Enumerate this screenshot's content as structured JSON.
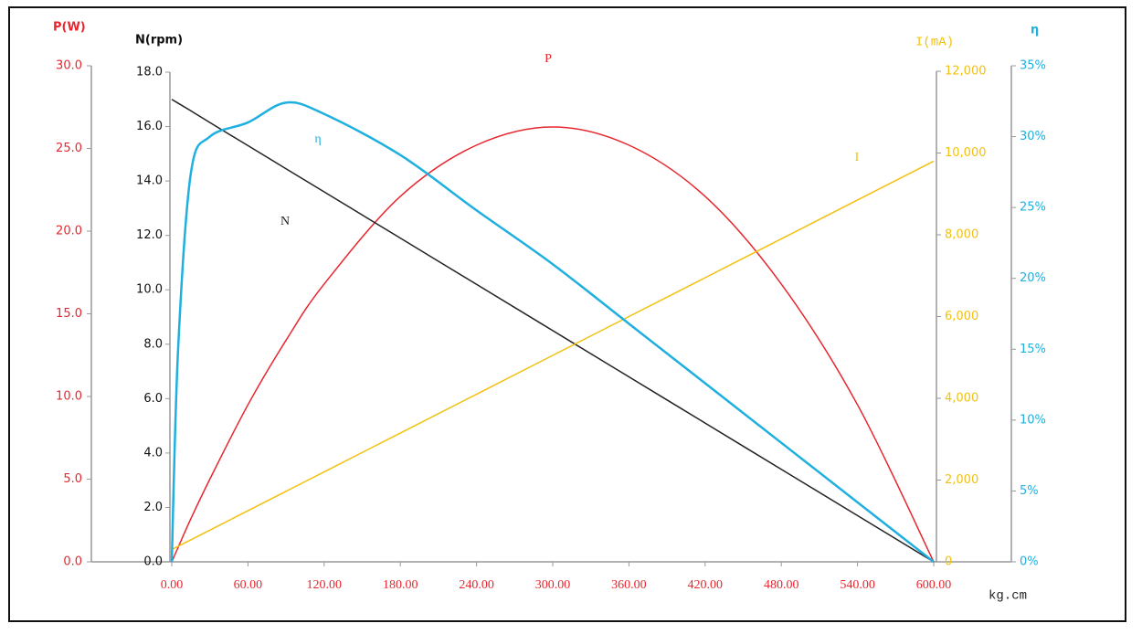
{
  "chart_data": {
    "type": "line",
    "x": [
      0,
      5,
      15,
      30,
      60,
      90,
      120,
      180,
      240,
      300,
      360,
      420,
      480,
      540,
      600
    ],
    "xlim": [
      0,
      600
    ],
    "xticks": [
      {
        "value": 0,
        "label": "0.00"
      },
      {
        "value": 60,
        "label": "60.00"
      },
      {
        "value": 120,
        "label": "120.00"
      },
      {
        "value": 180,
        "label": "180.00"
      },
      {
        "value": 240,
        "label": "240.00"
      },
      {
        "value": 300,
        "label": "300.00"
      },
      {
        "value": 360,
        "label": "360.00"
      },
      {
        "value": 420,
        "label": "420.00"
      },
      {
        "value": 480,
        "label": "480.00"
      },
      {
        "value": 540,
        "label": "540.00"
      },
      {
        "value": 600,
        "label": "600.00"
      }
    ],
    "x_label": "kg.cm",
    "axes": [
      {
        "title": "P(W)",
        "color": "#e8262e",
        "ylim": [
          0,
          30
        ],
        "yticks": [
          {
            "value": 0,
            "label": "0.0"
          },
          {
            "value": 5,
            "label": "5.0"
          },
          {
            "value": 10,
            "label": "10.0"
          },
          {
            "value": 15,
            "label": "15.0"
          },
          {
            "value": 20,
            "label": "20.0"
          },
          {
            "value": 25,
            "label": "25.0"
          },
          {
            "value": 30,
            "label": "30.0"
          }
        ]
      },
      {
        "title": "N(rpm)",
        "color": "#111111",
        "ylim": [
          0,
          18
        ],
        "yticks": [
          {
            "value": 0,
            "label": "0.0"
          },
          {
            "value": 2,
            "label": "2.0"
          },
          {
            "value": 4,
            "label": "4.0"
          },
          {
            "value": 6,
            "label": "6.0"
          },
          {
            "value": 8,
            "label": "8.0"
          },
          {
            "value": 10,
            "label": "10.0"
          },
          {
            "value": 12,
            "label": "12.0"
          },
          {
            "value": 14,
            "label": "14.0"
          },
          {
            "value": 16,
            "label": "16.0"
          },
          {
            "value": 18,
            "label": "18.0"
          }
        ]
      },
      {
        "title": "I(mA)",
        "color": "#f2c10f",
        "ylim": [
          0,
          12000
        ],
        "yticks": [
          0,
          {
            "value": 2000,
            "label": "2,000"
          },
          {
            "value": 4000,
            "label": "4,000"
          },
          {
            "value": 6000,
            "label": "6,000"
          },
          {
            "value": 8000,
            "label": "8,000"
          },
          {
            "value": 10000,
            "label": "10,000"
          },
          {
            "value": 12000,
            "label": "12,000"
          }
        ]
      },
      {
        "title": "η",
        "color": "#1fb0e0",
        "ylim": [
          0,
          35
        ],
        "yticks": [
          {
            "value": 0,
            "label": "0%"
          },
          {
            "value": 5,
            "label": "5%"
          },
          {
            "value": 10,
            "label": "10%"
          },
          {
            "value": 15,
            "label": "15%"
          },
          {
            "value": 20,
            "label": "20%"
          },
          {
            "value": 25,
            "label": "25%"
          },
          {
            "value": 30,
            "label": "30%"
          },
          {
            "value": 35,
            "label": "35%"
          }
        ]
      }
    ],
    "series": [
      {
        "name": "P",
        "color": "#e8262e",
        "axis": 0,
        "values": [
          0,
          0.87,
          2.6,
          5.0,
          9.5,
          13.4,
          16.8,
          22.1,
          25.2,
          26.3,
          25.2,
          22.1,
          16.8,
          9.5,
          0
        ]
      },
      {
        "name": "N",
        "color": "#222222",
        "axis": 1,
        "values": [
          17,
          16.86,
          16.58,
          16.15,
          15.3,
          14.45,
          13.6,
          11.9,
          10.2,
          8.5,
          6.8,
          5.1,
          3.4,
          1.7,
          0
        ]
      },
      {
        "name": "I",
        "color": "#f2c10f",
        "axis": 2,
        "values": [
          300,
          379,
          538,
          775,
          1250,
          1725,
          2200,
          3150,
          4100,
          5050,
          6000,
          6950,
          7900,
          8850,
          9800
        ]
      },
      {
        "name": "η",
        "color": "#1fb0e0",
        "axis": 3,
        "values": [
          0,
          15,
          27.4,
          30,
          31,
          32.4,
          31.6,
          28.7,
          24.8,
          21.0,
          16.8,
          12.6,
          8.4,
          4.2,
          0
        ]
      }
    ]
  }
}
